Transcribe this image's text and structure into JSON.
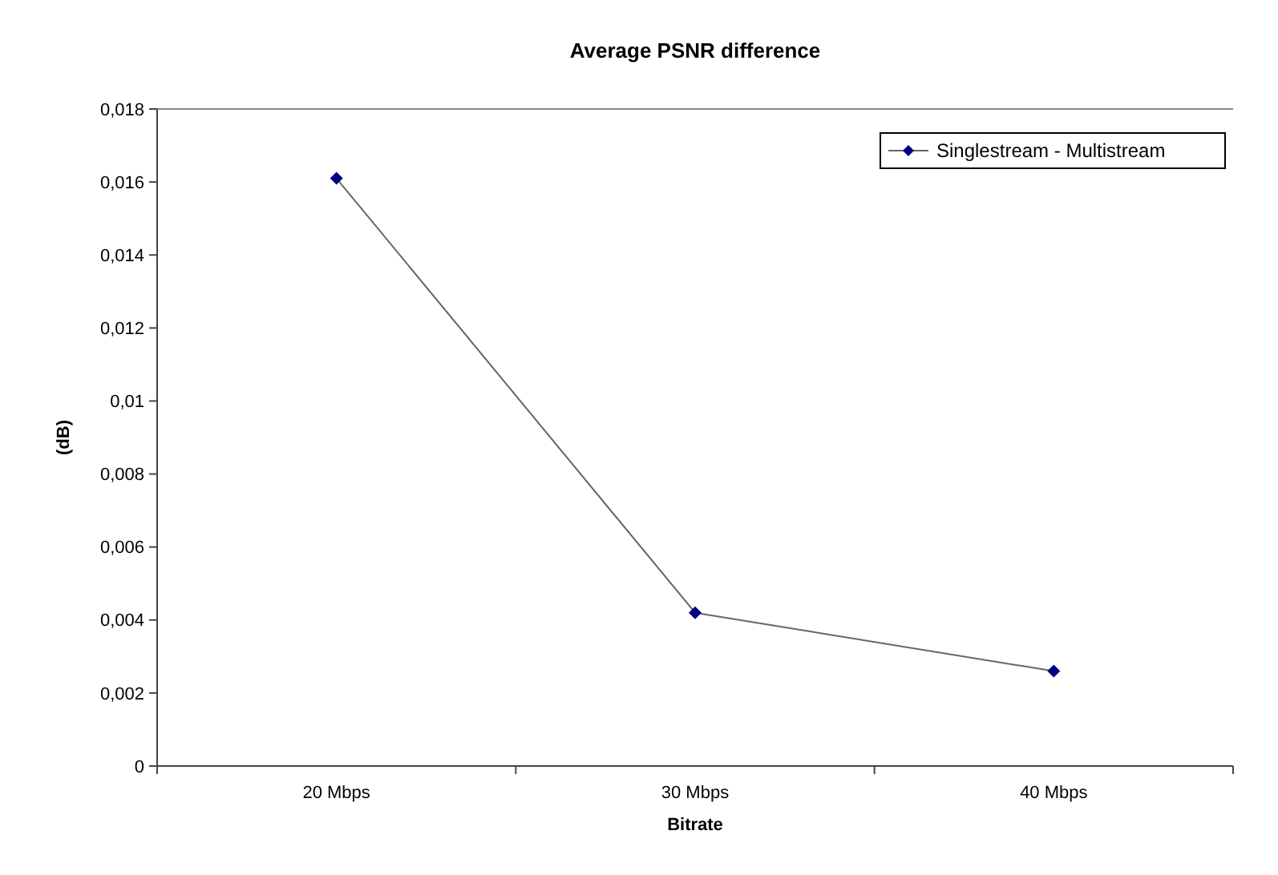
{
  "chart_data": {
    "type": "line",
    "title": "Average PSNR difference",
    "xlabel": "Bitrate",
    "ylabel": "(dB)",
    "categories": [
      "20 Mbps",
      "30 Mbps",
      "40 Mbps"
    ],
    "series": [
      {
        "name": "Singlestream - Multistream",
        "color": "#000080",
        "values": [
          0.0161,
          0.0042,
          0.0026
        ]
      }
    ],
    "ylim": [
      0,
      0.018
    ],
    "yticks": [
      {
        "value": 0,
        "label": "0"
      },
      {
        "value": 0.002,
        "label": "0,002"
      },
      {
        "value": 0.004,
        "label": "0,004"
      },
      {
        "value": 0.006,
        "label": "0,006"
      },
      {
        "value": 0.008,
        "label": "0,008"
      },
      {
        "value": 0.01,
        "label": "0,01"
      },
      {
        "value": 0.012,
        "label": "0,012"
      },
      {
        "value": 0.014,
        "label": "0,014"
      },
      {
        "value": 0.016,
        "label": "0,016"
      },
      {
        "value": 0.018,
        "label": "0,018"
      }
    ],
    "legend": "top right",
    "marker": "diamond",
    "grid": false
  }
}
